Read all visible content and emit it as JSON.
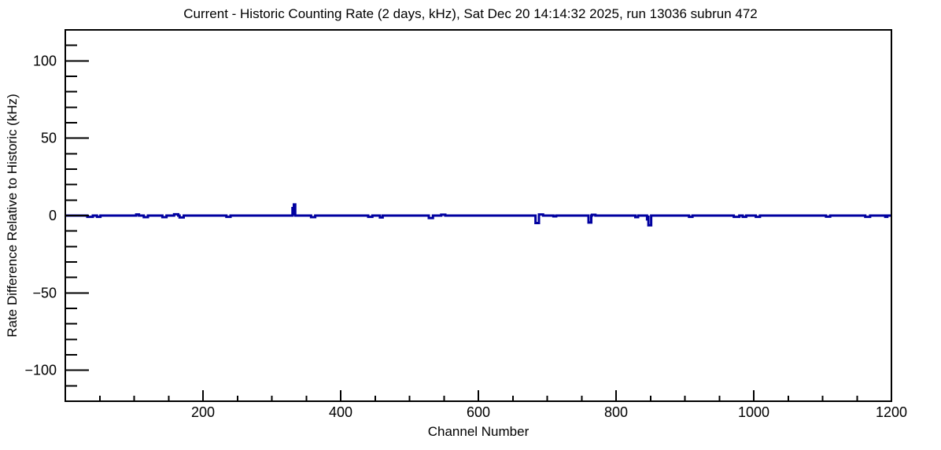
{
  "chart_data": {
    "type": "line",
    "subtype": "histogram-step",
    "title": "Current - Historic Counting Rate (2 days, kHz), Sat Dec 20 14:14:32 2025, run 13036 subrun 472",
    "xlabel": "Channel Number",
    "ylabel": "Rate Difference Relative to Historic (kHz)",
    "xlim": [
      0,
      1200
    ],
    "ylim": [
      -120,
      120
    ],
    "grid": false,
    "legend": null,
    "background": "#ffffff",
    "axis_color": "#000000",
    "line_color": "#0000a0",
    "x_major_ticks": [
      {
        "v": 200,
        "label": "200"
      },
      {
        "v": 400,
        "label": "400"
      },
      {
        "v": 600,
        "label": "600"
      },
      {
        "v": 800,
        "label": "800"
      },
      {
        "v": 1000,
        "label": "1000"
      },
      {
        "v": 1200,
        "label": "1200"
      }
    ],
    "x_minor_step": 50,
    "y_major_ticks": [
      {
        "v": -100,
        "label": "−100"
      },
      {
        "v": -50,
        "label": "−50"
      },
      {
        "v": 0,
        "label": "0"
      },
      {
        "v": 50,
        "label": "50"
      },
      {
        "v": 100,
        "label": "100"
      }
    ],
    "y_minor_step": 10,
    "baseline_khz": 0,
    "series": [
      {
        "name": "current-minus-historic-rate",
        "description": "Flat at 0 kHz over channels 0-1200 except these step deviations [start_channel, end_channel, value_kHz]",
        "segments_khz": [
          [
            32,
            40,
            -0.8
          ],
          [
            46,
            51,
            -0.8
          ],
          [
            103,
            107,
            0.7
          ],
          [
            114,
            120,
            -1.0
          ],
          [
            141,
            147,
            -1.0
          ],
          [
            158,
            164,
            0.8
          ],
          [
            166,
            172,
            -1.2
          ],
          [
            234,
            240,
            -0.8
          ],
          [
            330,
            332,
            4.8
          ],
          [
            332,
            334,
            7.2
          ],
          [
            357,
            363,
            -1.0
          ],
          [
            440,
            446,
            -0.8
          ],
          [
            457,
            461,
            -1.2
          ],
          [
            528,
            534,
            -1.6
          ],
          [
            546,
            552,
            0.6
          ],
          [
            683,
            688,
            -4.8
          ],
          [
            688,
            694,
            0.7
          ],
          [
            709,
            713,
            -0.5
          ],
          [
            760,
            764,
            -4.5
          ],
          [
            765,
            770,
            0.5
          ],
          [
            828,
            832,
            -1.0
          ],
          [
            845,
            847,
            -2.5
          ],
          [
            847,
            851,
            -6.3
          ],
          [
            906,
            911,
            -0.8
          ],
          [
            971,
            979,
            -0.8
          ],
          [
            984,
            989,
            -0.8
          ],
          [
            1003,
            1009,
            -0.8
          ],
          [
            1105,
            1111,
            -0.7
          ],
          [
            1162,
            1169,
            -0.8
          ],
          [
            1191,
            1194,
            -0.8
          ]
        ]
      }
    ]
  }
}
